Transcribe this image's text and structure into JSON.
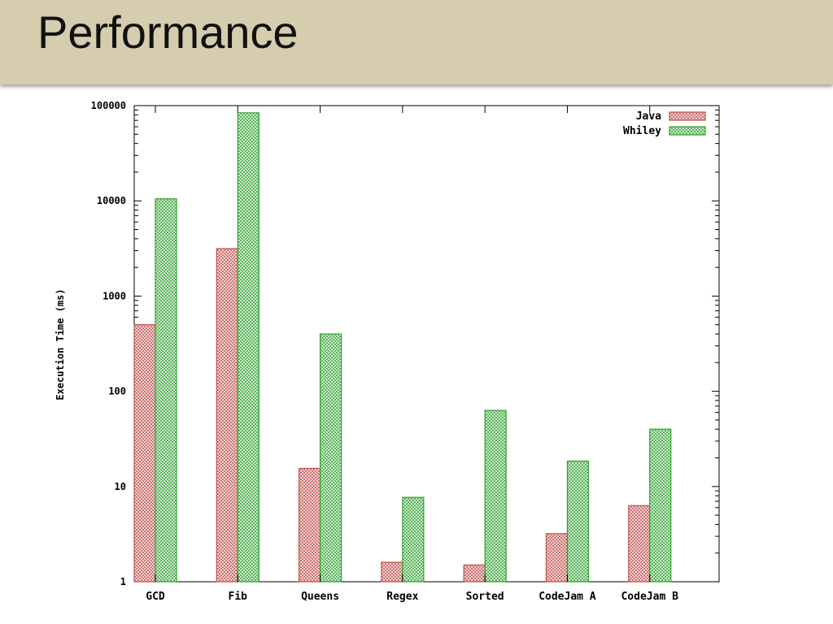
{
  "slide": {
    "title": "Performance"
  },
  "chart_data": {
    "type": "bar",
    "title": "",
    "xlabel": "",
    "ylabel": "Execution Time (ms)",
    "yscale": "log",
    "ylim": [
      1,
      100000
    ],
    "yticks": [
      1,
      10,
      100,
      1000,
      10000,
      100000
    ],
    "ytick_labels": [
      "1",
      "10",
      "100",
      "1000",
      "10000",
      "100000"
    ],
    "categories": [
      "GCD",
      "Fib",
      "Queens",
      "Regex",
      "Sorted",
      "CodeJam A",
      "CodeJam B"
    ],
    "series": [
      {
        "name": "Java",
        "color": "#c0504d",
        "values": [
          500,
          3150,
          15.5,
          1.6,
          1.5,
          3.2,
          6.3
        ]
      },
      {
        "name": "Whiley",
        "color": "#2ea02e",
        "values": [
          10500,
          84000,
          400,
          7.7,
          63,
          18.5,
          40
        ]
      }
    ],
    "legend_position": "top-right",
    "grid": false
  }
}
